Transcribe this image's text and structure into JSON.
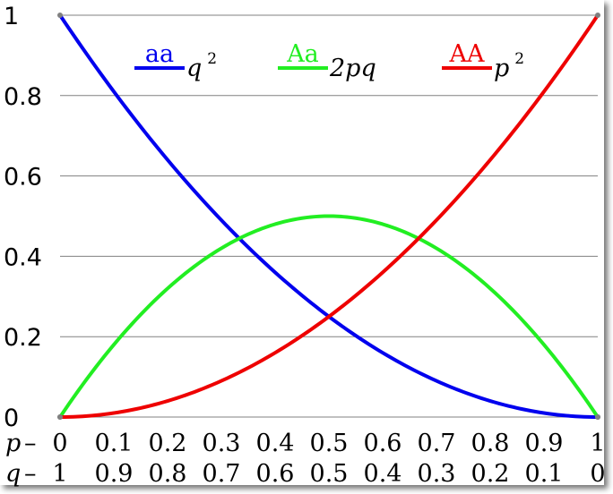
{
  "chart_data": {
    "type": "line",
    "title": "",
    "x": [
      0,
      0.1,
      0.2,
      0.3,
      0.4,
      0.5,
      0.6,
      0.7,
      0.8,
      0.9,
      1
    ],
    "x_ticks_p": [
      "0",
      "0.1",
      "0.2",
      "0.3",
      "0.4",
      "0.5",
      "0.6",
      "0.7",
      "0.8",
      "0.9",
      "1"
    ],
    "x_ticks_q": [
      "1",
      "0.9",
      "0.8",
      "0.7",
      "0.6",
      "0.5",
      "0.4",
      "0.3",
      "0.2",
      "0.1",
      "0"
    ],
    "x_axis_label_p": "p",
    "x_axis_label_q": "q",
    "x_axis_separator": "–",
    "y_ticks": [
      "0",
      "0.2",
      "0.4",
      "0.6",
      "0.8",
      "1"
    ],
    "xlim": [
      0,
      1
    ],
    "ylim": [
      0,
      1
    ],
    "grid": "horizontal",
    "legend_position": "top",
    "series": [
      {
        "name": "aa",
        "formula": "q",
        "exponent": "2",
        "color": "#0000ee",
        "values": [
          1,
          0.81,
          0.64,
          0.49,
          0.36,
          0.25,
          0.16,
          0.09,
          0.04,
          0.01,
          0
        ]
      },
      {
        "name": "Aa",
        "formula": "2pq",
        "exponent": "",
        "color": "#22ee22",
        "values": [
          0,
          0.18,
          0.32,
          0.42,
          0.48,
          0.5,
          0.48,
          0.42,
          0.32,
          0.18,
          0
        ]
      },
      {
        "name": "AA",
        "formula": "p",
        "exponent": "2",
        "color": "#ee0000",
        "values": [
          0,
          0.01,
          0.04,
          0.09,
          0.16,
          0.25,
          0.36,
          0.49,
          0.64,
          0.81,
          1
        ]
      }
    ]
  }
}
